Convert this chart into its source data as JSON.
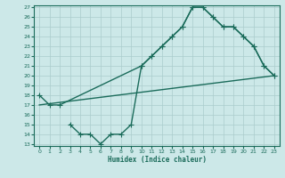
{
  "background_color": "#cce8e8",
  "grid_color": "#aacccc",
  "line_color": "#1a6b5a",
  "marker": "+",
  "markersize": 4,
  "linewidth": 1.0,
  "xlabel": "Humidex (Indice chaleur)",
  "ylim": [
    13,
    27
  ],
  "xlim": [
    -0.5,
    23.5
  ],
  "yticks": [
    13,
    14,
    15,
    16,
    17,
    18,
    19,
    20,
    21,
    22,
    23,
    24,
    25,
    26,
    27
  ],
  "xticks": [
    0,
    1,
    2,
    3,
    4,
    5,
    6,
    7,
    8,
    9,
    10,
    11,
    12,
    13,
    14,
    15,
    16,
    17,
    18,
    19,
    20,
    21,
    22,
    23
  ],
  "curve1_x": [
    0,
    1,
    2,
    10,
    11,
    12,
    13,
    14,
    15,
    16,
    17,
    18,
    19,
    20,
    21,
    22,
    23
  ],
  "curve1_y": [
    18,
    17,
    17,
    21,
    22,
    23,
    24,
    25,
    27,
    27,
    26,
    25,
    25,
    24,
    23,
    21,
    20
  ],
  "curve2_x": [
    3,
    4,
    5,
    6,
    7,
    8,
    9,
    10,
    11,
    12,
    13,
    14,
    15,
    16,
    17,
    18,
    19,
    20,
    21,
    22,
    23
  ],
  "curve2_y": [
    15,
    14,
    14,
    13,
    14,
    14,
    15,
    21,
    22,
    23,
    24,
    25,
    27,
    27,
    26,
    25,
    25,
    24,
    23,
    21,
    20
  ],
  "curve3_x": [
    0,
    23
  ],
  "curve3_y": [
    17,
    20
  ]
}
